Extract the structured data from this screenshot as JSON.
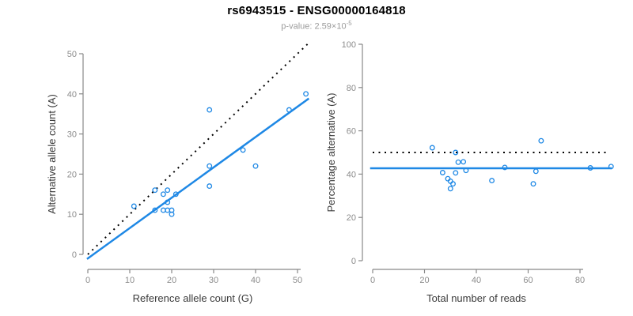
{
  "header": {
    "title": "rs6943515 - ENSG00000164818",
    "pvalue_prefix": "p-value: 2.59×10",
    "pvalue_exponent": "-5"
  },
  "colors": {
    "blue": "#1E88E5",
    "black": "#000000",
    "axis": "#898989",
    "tick_label": "#8c8c8c",
    "axis_title": "#3a3a3a",
    "title": "#000000",
    "subtitle": "#9b9b9b"
  },
  "chart_data": [
    {
      "type": "scatter",
      "name": "allele-counts",
      "xlabel": "Reference allele count (G)",
      "ylabel": "Alternative allele count (A)",
      "xlim": [
        0,
        52
      ],
      "ylim": [
        0,
        52
      ],
      "xticks": [
        0,
        10,
        20,
        30,
        40,
        50
      ],
      "yticks": [
        0,
        10,
        20,
        30,
        40,
        50
      ],
      "grid": false,
      "legend": "none",
      "points": [
        [
          52,
          40
        ],
        [
          48,
          36
        ],
        [
          29,
          36
        ],
        [
          37,
          26
        ],
        [
          29,
          22
        ],
        [
          40,
          22
        ],
        [
          29,
          17
        ],
        [
          11,
          12
        ],
        [
          16,
          16
        ],
        [
          18,
          15
        ],
        [
          19,
          16
        ],
        [
          21,
          15
        ],
        [
          19,
          13
        ],
        [
          16,
          11
        ],
        [
          18,
          11
        ],
        [
          19,
          11
        ],
        [
          20,
          11
        ],
        [
          20,
          10
        ]
      ],
      "lines": [
        {
          "name": "identity",
          "style": "dotted",
          "color": "black",
          "width": 2,
          "slope": 1,
          "intercept": 0,
          "x_from": 0,
          "x_to": 52.6
        },
        {
          "name": "regression",
          "style": "solid",
          "color": "blue",
          "width": 2.5,
          "slope": 0.756,
          "intercept": -1.0,
          "x_from": -0.2,
          "x_to": 52.7
        }
      ]
    },
    {
      "type": "scatter",
      "name": "percentage-vs-coverage",
      "xlabel": "Total number of reads",
      "ylabel": "Percentage alternative (A)",
      "xlim": [
        0,
        92
      ],
      "ylim": [
        0,
        100
      ],
      "xticks": [
        0,
        20,
        40,
        60,
        80
      ],
      "yticks": [
        0,
        20,
        40,
        60,
        80,
        100
      ],
      "grid": false,
      "legend": "none",
      "points": [
        [
          92,
          43.5
        ],
        [
          84,
          42.9
        ],
        [
          65,
          55.4
        ],
        [
          63,
          41.3
        ],
        [
          51,
          43.1
        ],
        [
          62,
          35.5
        ],
        [
          46,
          37.0
        ],
        [
          23,
          52.2
        ],
        [
          32,
          50.0
        ],
        [
          33,
          45.5
        ],
        [
          35,
          45.7
        ],
        [
          36,
          41.7
        ],
        [
          32,
          40.6
        ],
        [
          27,
          40.7
        ],
        [
          29,
          37.9
        ],
        [
          30,
          36.7
        ],
        [
          31,
          35.5
        ],
        [
          30,
          33.3
        ]
      ],
      "lines": [
        {
          "name": "expected-50pct",
          "style": "dotted",
          "color": "black",
          "width": 2,
          "y": 50,
          "x_from": 0,
          "x_to": 90.5
        },
        {
          "name": "mean-percentage",
          "style": "solid",
          "color": "blue",
          "width": 2.5,
          "y": 42.7,
          "x_from": -1,
          "x_to": 92.3
        }
      ]
    }
  ]
}
